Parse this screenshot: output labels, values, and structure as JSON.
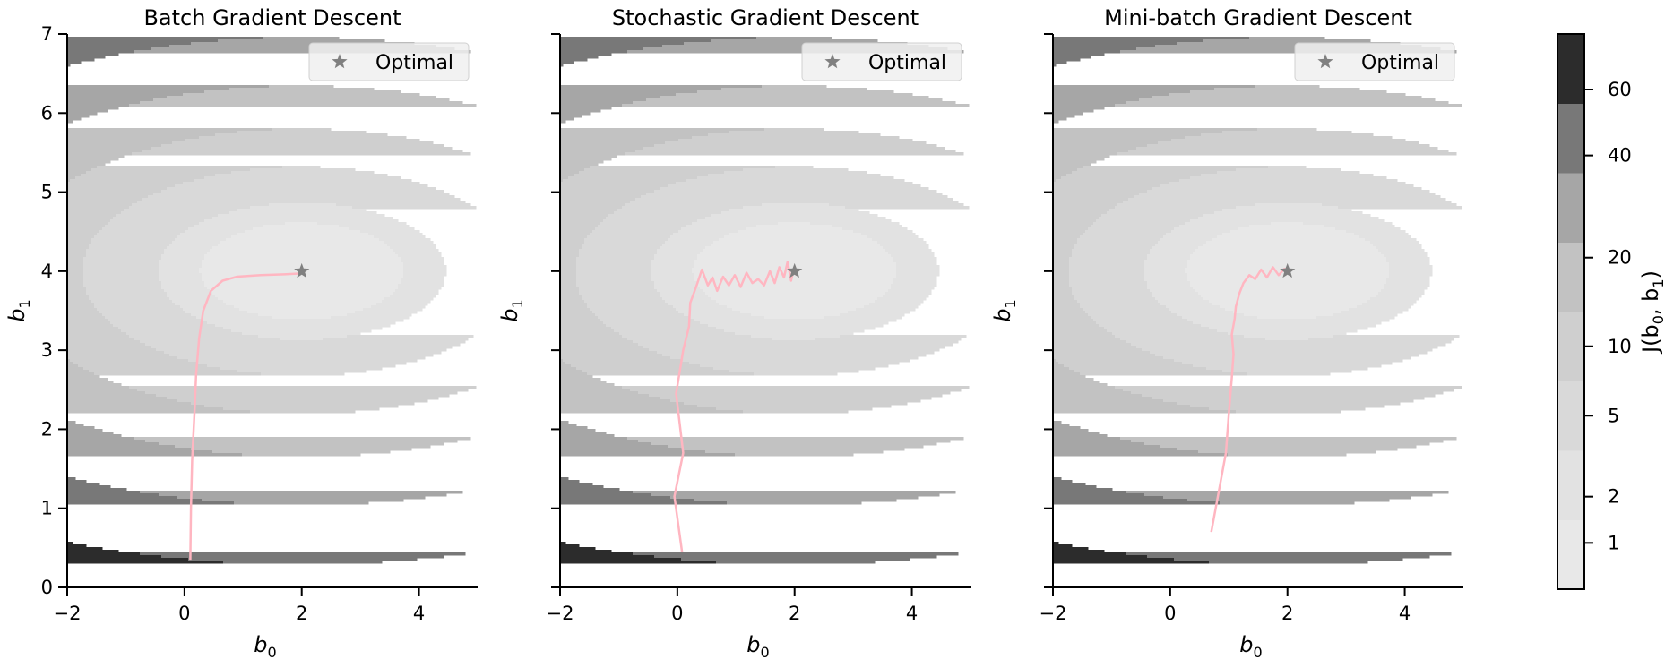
{
  "chart_data": [
    {
      "type": "contour",
      "title": "Batch Gradient Descent",
      "xlabel": "b",
      "xlabel_sub": "0",
      "ylabel": "b",
      "ylabel_sub": "1",
      "xlim": [
        -2,
        5
      ],
      "ylim": [
        0,
        7
      ],
      "xticks": [
        "−2",
        "0",
        "2",
        "4"
      ],
      "xtick_values": [
        -2,
        0,
        2,
        4
      ],
      "yticks": [
        "0",
        "1",
        "2",
        "3",
        "4",
        "5",
        "6",
        "7"
      ],
      "ytick_values": [
        0,
        1,
        2,
        3,
        4,
        5,
        6,
        7
      ],
      "optimal": {
        "b0": 2,
        "b1": 4
      },
      "legend": {
        "label": "Optimal",
        "placement": "top-right"
      },
      "path_color": "#ffb6c1",
      "path": [
        [
          0.1,
          0.35
        ],
        [
          0.11,
          1.0
        ],
        [
          0.13,
          1.6
        ],
        [
          0.17,
          2.2
        ],
        [
          0.2,
          2.7
        ],
        [
          0.25,
          3.15
        ],
        [
          0.32,
          3.5
        ],
        [
          0.45,
          3.75
        ],
        [
          0.65,
          3.88
        ],
        [
          0.9,
          3.93
        ],
        [
          1.3,
          3.95
        ],
        [
          1.7,
          3.96
        ],
        [
          1.95,
          3.97
        ]
      ]
    },
    {
      "type": "contour",
      "title": "Stochastic Gradient Descent",
      "xlabel": "b",
      "xlabel_sub": "0",
      "ylabel": "b",
      "ylabel_sub": "1",
      "xlim": [
        -2,
        5
      ],
      "ylim": [
        0,
        7
      ],
      "xticks": [
        "−2",
        "0",
        "2",
        "4"
      ],
      "xtick_values": [
        -2,
        0,
        2,
        4
      ],
      "yticks": [],
      "ytick_values": [
        0,
        1,
        2,
        3,
        4,
        5,
        6,
        7
      ],
      "optimal": {
        "b0": 2,
        "b1": 4
      },
      "legend": {
        "label": "Optimal",
        "placement": "top-right"
      },
      "path_color": "#ffb6c1",
      "path": [
        [
          0.08,
          0.45
        ],
        [
          -0.05,
          1.15
        ],
        [
          0.1,
          1.7
        ],
        [
          -0.02,
          2.45
        ],
        [
          0.1,
          3.0
        ],
        [
          0.2,
          3.3
        ],
        [
          0.22,
          3.6
        ],
        [
          0.32,
          3.8
        ],
        [
          0.42,
          4.02
        ],
        [
          0.52,
          3.82
        ],
        [
          0.6,
          3.92
        ],
        [
          0.68,
          3.75
        ],
        [
          0.78,
          3.93
        ],
        [
          0.88,
          3.82
        ],
        [
          0.98,
          3.95
        ],
        [
          1.08,
          3.8
        ],
        [
          1.18,
          3.98
        ],
        [
          1.28,
          3.85
        ],
        [
          1.38,
          3.9
        ],
        [
          1.48,
          3.82
        ],
        [
          1.58,
          4.0
        ],
        [
          1.66,
          3.85
        ],
        [
          1.74,
          4.05
        ],
        [
          1.82,
          3.92
        ],
        [
          1.88,
          4.12
        ],
        [
          1.94,
          3.88
        ],
        [
          1.98,
          4.02
        ],
        [
          2.03,
          3.95
        ]
      ]
    },
    {
      "type": "contour",
      "title": "Mini-batch Gradient Descent",
      "xlabel": "b",
      "xlabel_sub": "0",
      "ylabel": "b",
      "ylabel_sub": "1",
      "xlim": [
        -2,
        5
      ],
      "ylim": [
        0,
        7
      ],
      "xticks": [
        "−2",
        "0",
        "2",
        "4"
      ],
      "xtick_values": [
        -2,
        0,
        2,
        4
      ],
      "yticks": [],
      "ytick_values": [
        0,
        1,
        2,
        3,
        4,
        5,
        6,
        7
      ],
      "optimal": {
        "b0": 2,
        "b1": 4
      },
      "legend": {
        "label": "Optimal",
        "placement": "top-right"
      },
      "path_color": "#ffb6c1",
      "path": [
        [
          0.7,
          0.7
        ],
        [
          0.85,
          1.3
        ],
        [
          0.95,
          1.7
        ],
        [
          1.0,
          2.2
        ],
        [
          1.05,
          2.65
        ],
        [
          1.08,
          2.95
        ],
        [
          1.05,
          3.2
        ],
        [
          1.1,
          3.4
        ],
        [
          1.12,
          3.55
        ],
        [
          1.18,
          3.72
        ],
        [
          1.25,
          3.85
        ],
        [
          1.35,
          3.95
        ],
        [
          1.45,
          3.9
        ],
        [
          1.55,
          4.02
        ],
        [
          1.65,
          3.92
        ],
        [
          1.75,
          4.05
        ],
        [
          1.85,
          3.95
        ],
        [
          1.95,
          4.03
        ],
        [
          2.02,
          3.98
        ]
      ]
    }
  ],
  "colorbar": {
    "label": "J(b",
    "label_sub0": "0",
    "label_mid": ", b",
    "label_sub1": "1",
    "label_end": ")",
    "ticks": [
      "1",
      "2",
      "5",
      "10",
      "20",
      "40",
      "60"
    ],
    "tick_values": [
      1,
      2,
      5,
      10,
      20,
      40,
      60
    ],
    "levels": [
      0,
      1.5,
      3,
      7,
      13,
      22,
      35,
      55,
      80
    ],
    "colors": [
      "#e8e8e8",
      "#e2e2e2",
      "#d9d9d9",
      "#cfcfcf",
      "#c2c2c2",
      "#a6a6a6",
      "#787878",
      "#2c2c2c"
    ]
  }
}
